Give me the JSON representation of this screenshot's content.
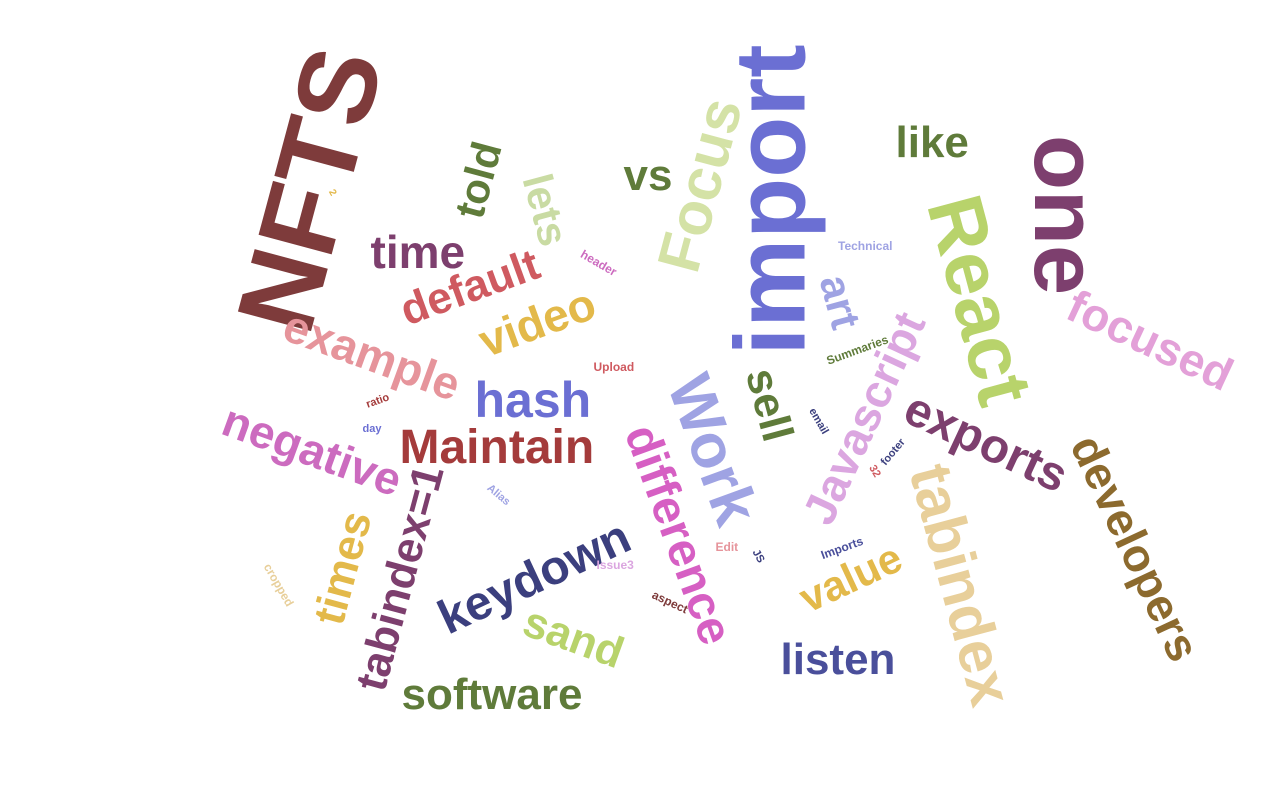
{
  "words": [
    {
      "text": "NFTS",
      "color": "#7e3b3b",
      "rotation": "-75"
    },
    {
      "text": "import",
      "color": "#6b6fd3",
      "rotation": "-90"
    },
    {
      "text": "React",
      "color": "#b8d36b",
      "rotation": "75"
    },
    {
      "text": "one",
      "color": "#7d3f6e",
      "rotation": "90"
    },
    {
      "text": "Focus",
      "color": "#d4e2a6",
      "rotation": "-75"
    },
    {
      "text": "like",
      "color": "#5f7b3a",
      "rotation": "0"
    },
    {
      "text": "vs",
      "color": "#5f7b3a",
      "rotation": "0"
    },
    {
      "text": "told",
      "color": "#5f7b3a",
      "rotation": "-75"
    },
    {
      "text": "lets",
      "color": "#c9dba3",
      "rotation": "75"
    },
    {
      "text": "time",
      "color": "#7d3f6e",
      "rotation": "0"
    },
    {
      "text": "default",
      "color": "#cf5a60",
      "rotation": "-20"
    },
    {
      "text": "example",
      "color": "#e6949b",
      "rotation": "20"
    },
    {
      "text": "video",
      "color": "#e3b94a",
      "rotation": "-20"
    },
    {
      "text": "hash",
      "color": "#6b6fd3",
      "rotation": "0"
    },
    {
      "text": "Maintain",
      "color": "#a43b3b",
      "rotation": "0"
    },
    {
      "text": "negative",
      "color": "#cc6bbf",
      "rotation": "20"
    },
    {
      "text": "Work",
      "color": "#9fa3e3",
      "rotation": "70"
    },
    {
      "text": "sell",
      "color": "#5f7b3a",
      "rotation": "75"
    },
    {
      "text": "art",
      "color": "#9fa3e3",
      "rotation": "75"
    },
    {
      "text": "Javascript",
      "color": "#dba6e0",
      "rotation": "-65"
    },
    {
      "text": "exports",
      "color": "#7d3f6e",
      "rotation": "25"
    },
    {
      "text": "focused",
      "color": "#e3a0d8",
      "rotation": "25"
    },
    {
      "text": "developers",
      "color": "#8c6a2e",
      "rotation": "65"
    },
    {
      "text": "tabindex",
      "color": "#e8cf9a",
      "rotation": "75"
    },
    {
      "text": "difference",
      "color": "#d65fc3",
      "rotation": "70"
    },
    {
      "text": "keydown",
      "color": "#3b3f7e",
      "rotation": "-25"
    },
    {
      "text": "tabindex=1",
      "color": "#7d3f6e",
      "rotation": "-75"
    },
    {
      "text": "times",
      "color": "#e3b94a",
      "rotation": "-75"
    },
    {
      "text": "sand",
      "color": "#b8d36b",
      "rotation": "20"
    },
    {
      "text": "software",
      "color": "#5f7b3a",
      "rotation": "0"
    },
    {
      "text": "listen",
      "color": "#4a4f9b",
      "rotation": "0"
    },
    {
      "text": "value",
      "color": "#e3b94a",
      "rotation": "-25"
    },
    {
      "text": "Technical",
      "color": "#9fa3e3",
      "rotation": "0"
    },
    {
      "text": "Summaries",
      "color": "#5f7b3a",
      "rotation": "-20"
    },
    {
      "text": "Upload",
      "color": "#cf5a60",
      "rotation": "0"
    },
    {
      "text": "header",
      "color": "#cc6bbf",
      "rotation": "30"
    },
    {
      "text": "ratio",
      "color": "#a43b3b",
      "rotation": "-20"
    },
    {
      "text": "day",
      "color": "#6b6fd3",
      "rotation": "0"
    },
    {
      "text": "email",
      "color": "#3b3f7e",
      "rotation": "60"
    },
    {
      "text": "footer",
      "color": "#3b3f7e",
      "rotation": "-50"
    },
    {
      "text": "32",
      "color": "#cf5a60",
      "rotation": "60"
    },
    {
      "text": "Alias",
      "color": "#9fa3e3",
      "rotation": "40"
    },
    {
      "text": "Edit",
      "color": "#e6949b",
      "rotation": "0"
    },
    {
      "text": "JS",
      "color": "#3b3f7e",
      "rotation": "60"
    },
    {
      "text": "Imports",
      "color": "#4a4f9b",
      "rotation": "-20"
    },
    {
      "text": "Issue3",
      "color": "#dba6e0",
      "rotation": "0"
    },
    {
      "text": "aspect",
      "color": "#7e3b3b",
      "rotation": "25"
    },
    {
      "text": "cropped",
      "color": "#e8cf9a",
      "rotation": "60"
    },
    {
      "text": "2",
      "color": "#e3b94a",
      "rotation": "60"
    }
  ]
}
